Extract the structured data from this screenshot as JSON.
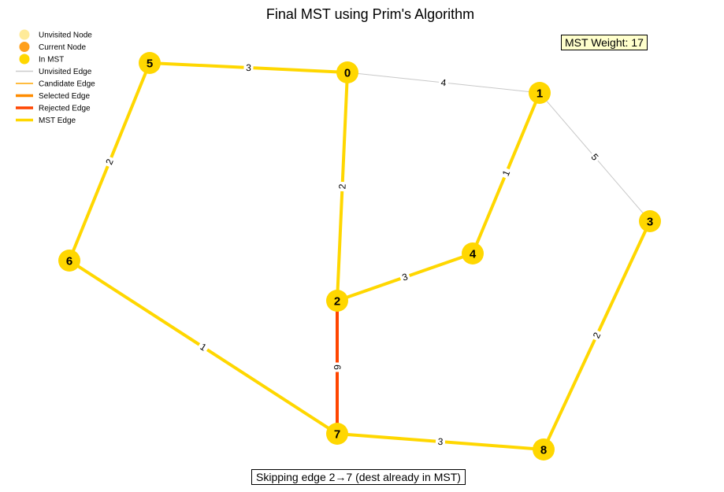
{
  "title": "Final MST using Prim's Algorithm",
  "mst_weight_text": "MST Weight: 17",
  "status_text": "Skipping edge 2→7 (dest already in MST)",
  "legend": [
    {
      "label": "Unvisited Node",
      "kind": "node",
      "color": "#ffeb99"
    },
    {
      "label": "Current Node",
      "kind": "node",
      "color": "#ff9f1a"
    },
    {
      "label": "In MST",
      "kind": "node",
      "color": "#ffd700"
    },
    {
      "label": "Unvisited Edge",
      "kind": "edge",
      "color": "#cccccc",
      "weight": "thin"
    },
    {
      "label": "Candidate Edge",
      "kind": "edge",
      "color": "#ffa500",
      "weight": "thin"
    },
    {
      "label": "Selected Edge",
      "kind": "edge",
      "color": "#ff8c00",
      "weight": "thick"
    },
    {
      "label": "Rejected Edge",
      "kind": "edge",
      "color": "#ff4500",
      "weight": "thick"
    },
    {
      "label": "MST Edge",
      "kind": "edge",
      "color": "#ffd700",
      "weight": "thick"
    }
  ],
  "graph": {
    "nodes": [
      {
        "id": "0",
        "label": "0",
        "state": "mst"
      },
      {
        "id": "1",
        "label": "1",
        "state": "mst"
      },
      {
        "id": "2",
        "label": "2",
        "state": "mst"
      },
      {
        "id": "3",
        "label": "3",
        "state": "mst"
      },
      {
        "id": "4",
        "label": "4",
        "state": "mst"
      },
      {
        "id": "5",
        "label": "5",
        "state": "mst"
      },
      {
        "id": "6",
        "label": "6",
        "state": "mst"
      },
      {
        "id": "7",
        "label": "7",
        "state": "mst"
      },
      {
        "id": "8",
        "label": "8",
        "state": "mst"
      }
    ],
    "edges": [
      {
        "from": "0",
        "to": "5",
        "weight": "3",
        "state": "mst"
      },
      {
        "from": "0",
        "to": "1",
        "weight": "4",
        "state": "unvisited"
      },
      {
        "from": "0",
        "to": "2",
        "weight": "2",
        "state": "mst"
      },
      {
        "from": "1",
        "to": "4",
        "weight": "1",
        "state": "mst"
      },
      {
        "from": "1",
        "to": "3",
        "weight": "5",
        "state": "unvisited"
      },
      {
        "from": "5",
        "to": "6",
        "weight": "2",
        "state": "mst"
      },
      {
        "from": "2",
        "to": "4",
        "weight": "3",
        "state": "mst"
      },
      {
        "from": "6",
        "to": "7",
        "weight": "1",
        "state": "mst"
      },
      {
        "from": "2",
        "to": "7",
        "weight": "6",
        "state": "rejected"
      },
      {
        "from": "7",
        "to": "8",
        "weight": "3",
        "state": "mst"
      },
      {
        "from": "3",
        "to": "8",
        "weight": "2",
        "state": "mst"
      }
    ]
  },
  "colors": {
    "mst": "#ffd700",
    "rejected": "#ff4500",
    "unvisited": "#c8c8c8"
  }
}
